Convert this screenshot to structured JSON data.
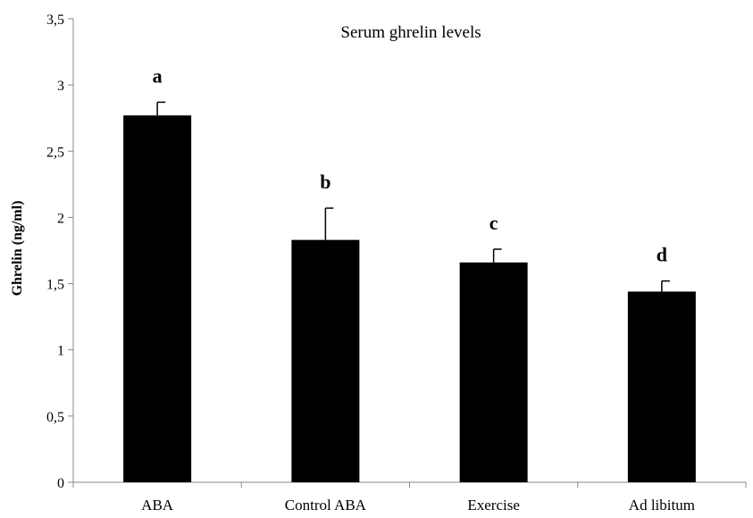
{
  "chart_data": {
    "type": "bar",
    "title": "Serum ghrelin levels",
    "ylabel": "Ghrelin (ng/ml)",
    "xlabel": "",
    "categories": [
      "ABA",
      "Control ABA",
      "Exercise",
      "Ad libitum"
    ],
    "values": [
      2.77,
      1.83,
      1.66,
      1.44
    ],
    "error": [
      0.1,
      0.24,
      0.1,
      0.08
    ],
    "significance": [
      "a",
      "b",
      "c",
      "d"
    ],
    "ylim": [
      0,
      3.5
    ],
    "yticks": [
      0,
      0.5,
      1,
      1.5,
      2,
      2.5,
      3,
      3.5
    ],
    "ytick_labels": [
      "0",
      "0,5",
      "1",
      "1,5",
      "2",
      "2,5",
      "3",
      "3,5"
    ],
    "bar_color": "#000000",
    "grid": false,
    "legend": "none"
  }
}
